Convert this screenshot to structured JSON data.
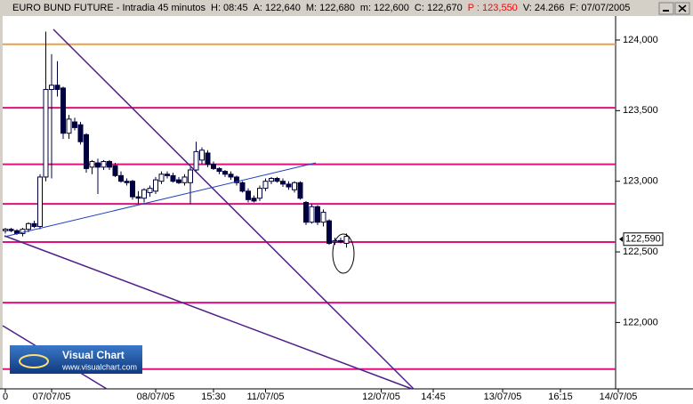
{
  "chart_data": {
    "type": "candlestick",
    "title": "EURO BUND FUTURE - Intradia 45 minutos",
    "header_fields": [
      {
        "text": "H: 08:45",
        "color": "#000000"
      },
      {
        "text": "A: 122,640",
        "color": "#000000"
      },
      {
        "text": "M: 122,680",
        "color": "#000000"
      },
      {
        "text": "m: 122,600",
        "color": "#000000"
      },
      {
        "text": "C: 122,670",
        "color": "#000000"
      },
      {
        "text": "P : 123,550",
        "color": "#ff0000"
      },
      {
        "text": "V: 24.266",
        "color": "#000000"
      },
      {
        "text": "F: 07/07/2005",
        "color": "#000000"
      }
    ],
    "categories": [
      "0",
      null,
      null,
      null,
      null,
      null,
      null,
      null,
      "07/07/05",
      null,
      null,
      null,
      null,
      null,
      null,
      null,
      null,
      null,
      null,
      null,
      null,
      null,
      null,
      null,
      null,
      null,
      "08/07/05",
      null,
      null,
      null,
      null,
      null,
      null,
      null,
      null,
      null,
      "15:30",
      null,
      null,
      null,
      null,
      null,
      null,
      null,
      null,
      "11/07/05",
      null,
      null,
      null,
      null,
      null,
      null,
      null,
      null,
      null,
      null,
      null,
      null,
      null,
      null,
      null,
      null,
      null,
      null,
      null,
      "12/07/05",
      null,
      null,
      null,
      null,
      null,
      null,
      null,
      null,
      "14:45",
      null,
      null,
      null,
      null,
      null,
      null,
      null,
      null,
      null,
      null,
      null,
      "13/07/05",
      null,
      null,
      null,
      null,
      null,
      null,
      null,
      null,
      null,
      "16:15",
      null,
      null,
      null,
      null,
      null,
      null,
      null,
      null,
      null,
      "14/07/05"
    ],
    "open": [
      122.65,
      122.66,
      122.65,
      122.63,
      122.66,
      122.7,
      122.68,
      123.03,
      123.65,
      123.68,
      123.66,
      123.34,
      123.42,
      123.4,
      123.33,
      123.1,
      123.13,
      123.1,
      123.14,
      123.11,
      123.04,
      123.0,
      123.0,
      122.89,
      122.88,
      122.92,
      122.93,
      123.0,
      123.05,
      123.04,
      123.01,
      122.99,
      122.99,
      123.08,
      123.15,
      123.2,
      123.12,
      123.09,
      123.07,
      123.05,
      123.03,
      122.99,
      122.93,
      122.88,
      122.88,
      122.95,
      123.0,
      123.02,
      123.0,
      122.98,
      122.94,
      122.99,
      122.85,
      122.71,
      122.82,
      122.71,
      122.72,
      122.57,
      122.58,
      122.56,
      null,
      null,
      null,
      null,
      null,
      null,
      null,
      null,
      null,
      null,
      null,
      null,
      null,
      null,
      null,
      null,
      null,
      null,
      null,
      null,
      null,
      null,
      null,
      null,
      null,
      null,
      null,
      null,
      null,
      null,
      null,
      null,
      null,
      null,
      null,
      null,
      null,
      null,
      null,
      null,
      null,
      null,
      null,
      null,
      null,
      null,
      null
    ],
    "high": [
      122.67,
      122.67,
      122.66,
      122.67,
      122.71,
      122.72,
      123.05,
      124.06,
      123.9,
      123.85,
      123.67,
      123.47,
      123.45,
      123.42,
      123.34,
      123.15,
      123.16,
      123.15,
      123.15,
      123.13,
      123.07,
      123.02,
      123.01,
      122.93,
      122.95,
      122.97,
      123.03,
      123.07,
      123.07,
      123.06,
      123.03,
      123.05,
      123.1,
      123.28,
      123.24,
      123.22,
      123.14,
      123.1,
      123.08,
      123.07,
      123.04,
      123.0,
      122.95,
      122.9,
      122.97,
      123.02,
      123.03,
      123.03,
      123.02,
      123.0,
      123.0,
      123.0,
      122.86,
      122.84,
      122.83,
      122.8,
      122.73,
      122.6,
      122.6,
      122.63,
      null,
      null,
      null,
      null,
      null,
      null,
      null,
      null,
      null,
      null,
      null,
      null,
      null,
      null,
      null,
      null,
      null,
      null,
      null,
      null,
      null,
      null,
      null,
      null,
      null,
      null,
      null,
      null,
      null,
      null,
      null,
      null,
      null,
      null,
      null,
      null,
      null,
      null,
      null,
      null,
      null,
      null,
      null,
      null,
      null,
      null,
      null
    ],
    "low": [
      122.63,
      122.64,
      122.62,
      122.61,
      122.64,
      122.67,
      122.66,
      123.0,
      123.02,
      123.6,
      123.3,
      123.3,
      123.36,
      123.26,
      123.06,
      123.05,
      122.91,
      123.08,
      123.08,
      123.03,
      122.99,
      122.97,
      122.87,
      122.84,
      122.85,
      122.89,
      122.91,
      122.98,
      123.02,
      122.99,
      122.98,
      122.97,
      122.84,
      123.06,
      123.12,
      123.1,
      123.08,
      123.05,
      123.03,
      123.01,
      122.97,
      122.92,
      122.85,
      122.85,
      122.86,
      122.93,
      122.98,
      122.99,
      122.96,
      122.94,
      122.92,
      122.87,
      122.69,
      122.7,
      122.69,
      122.68,
      122.55,
      122.55,
      122.56,
      122.53,
      null,
      null,
      null,
      null,
      null,
      null,
      null,
      null,
      null,
      null,
      null,
      null,
      null,
      null,
      null,
      null,
      null,
      null,
      null,
      null,
      null,
      null,
      null,
      null,
      null,
      null,
      null,
      null,
      null,
      null,
      null,
      null,
      null,
      null,
      null,
      null,
      null,
      null,
      null,
      null,
      null,
      null,
      null,
      null,
      null,
      null,
      null
    ],
    "close": [
      122.66,
      122.65,
      122.63,
      122.66,
      122.7,
      122.68,
      123.03,
      123.65,
      123.68,
      123.65,
      123.34,
      123.44,
      123.38,
      123.28,
      123.09,
      123.14,
      123.1,
      123.14,
      123.1,
      123.04,
      123.0,
      122.99,
      122.89,
      122.88,
      122.94,
      122.95,
      123.01,
      123.05,
      123.04,
      123.0,
      122.99,
      123.03,
      123.08,
      123.21,
      123.22,
      123.12,
      123.09,
      123.07,
      123.05,
      123.03,
      122.99,
      122.93,
      122.87,
      122.86,
      122.95,
      123.0,
      123.02,
      123.0,
      122.98,
      122.96,
      122.99,
      122.88,
      122.71,
      122.82,
      122.71,
      122.78,
      122.56,
      122.58,
      122.57,
      122.61,
      null,
      null,
      null,
      null,
      null,
      null,
      null,
      null,
      null,
      null,
      null,
      null,
      null,
      null,
      null,
      null,
      null,
      null,
      null,
      null,
      null,
      null,
      null,
      null,
      null,
      null,
      null,
      null,
      null,
      null,
      null,
      null,
      null,
      null,
      null,
      null,
      null,
      null,
      null,
      null,
      null,
      null,
      null,
      null,
      null,
      null,
      null
    ],
    "up_color": "#ffffff",
    "down_color": "#000040",
    "ylim": [
      121.53,
      124.17
    ],
    "yticks": [
      {
        "value": 124,
        "label": "124,000"
      },
      {
        "value": 123.5,
        "label": "123,500"
      },
      {
        "value": 123,
        "label": "123,000"
      },
      {
        "value": 122.5,
        "label": "122,500"
      },
      {
        "value": 122,
        "label": "122,000"
      }
    ],
    "levels": [
      {
        "value": 123.97,
        "color": "#e8a048"
      },
      {
        "value": 123.52,
        "color": "#e0107e"
      },
      {
        "value": 123.12,
        "color": "#e0107e"
      },
      {
        "value": 122.84,
        "color": "#e0107e"
      },
      {
        "value": 122.57,
        "color": "#e0107e"
      },
      {
        "value": 122.14,
        "color": "#e0107e"
      },
      {
        "value": 121.67,
        "color": "#e0107e"
      }
    ],
    "last_price": {
      "value": 122.59,
      "label": "122,590"
    },
    "logo": {
      "title": "Visual Chart",
      "url": "www.visualchart.com"
    }
  }
}
